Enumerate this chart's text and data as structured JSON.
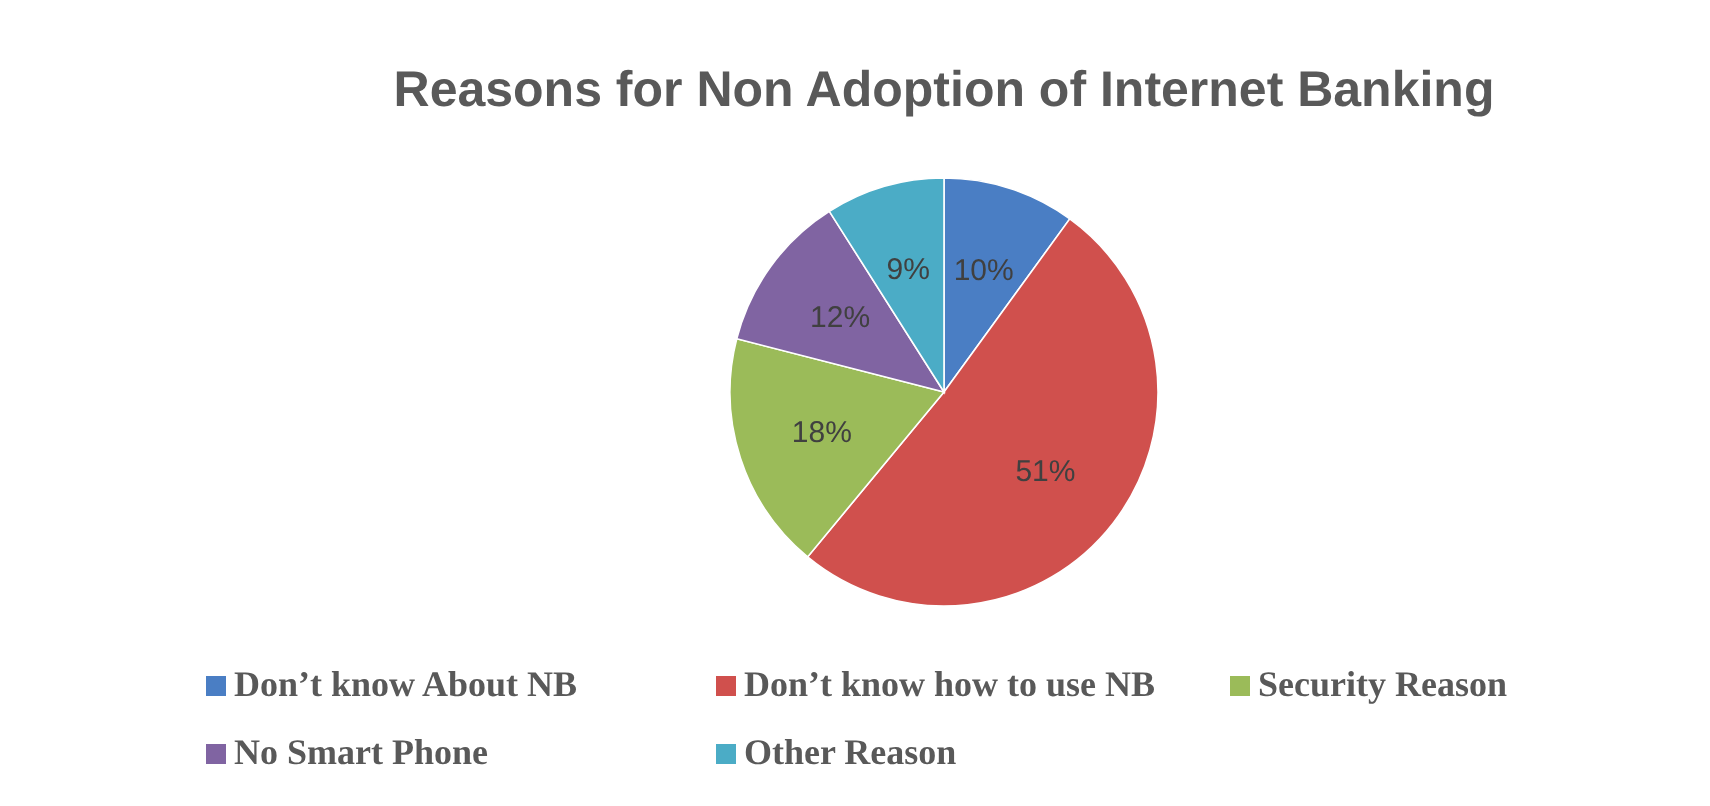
{
  "chart_data": {
    "type": "pie",
    "title": "Reasons for Non Adoption of Internet Banking",
    "categories": [
      "Don’t know About NB",
      "Don’t know how to use NB",
      "Security Reason",
      "No Smart Phone",
      "Other Reason"
    ],
    "values": [
      10,
      51,
      18,
      12,
      9
    ],
    "colors": [
      "#4a7ec4",
      "#d0504d",
      "#9bbb59",
      "#8064a2",
      "#4bacc6"
    ],
    "value_labels": [
      "10%",
      "51%",
      "18%",
      "12%",
      "9%"
    ],
    "legend": "bottom"
  }
}
